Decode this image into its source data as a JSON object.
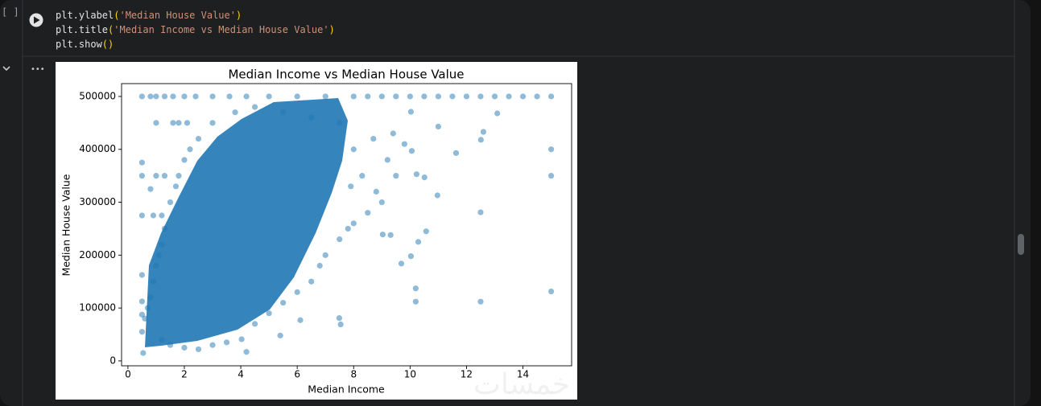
{
  "cell": {
    "execution_count": "[ ]",
    "code": [
      [
        "plt.ylabel",
        "(",
        "'Median House Value'",
        ")"
      ],
      [
        "plt.title",
        "(",
        "'Median Income vs Median House Value'",
        ")"
      ],
      [
        "plt.show",
        "()"
      ]
    ],
    "output_menu": "•••",
    "watermark": "خمسات"
  },
  "chart_data": {
    "type": "scatter",
    "title": "Median Income vs Median House Value",
    "x_label": "Median Income",
    "y_label": "Median House Value",
    "color": "#1f77b4",
    "xlim": [
      -0.225,
      15.725
    ],
    "ylim": [
      -9250,
      524250
    ],
    "xticks": [
      0,
      2,
      4,
      6,
      8,
      10,
      12,
      14
    ],
    "yticks": [
      0,
      100000,
      200000,
      300000,
      400000,
      500000
    ],
    "grid": false,
    "series": [
      {
        "name": "data",
        "x": [
          0.5,
          0.8,
          1.0,
          1.3,
          1.6,
          2.0,
          2.4,
          3.0,
          3.6,
          4.2,
          5,
          6,
          7,
          8,
          8.5,
          9,
          9.5,
          10,
          10.5,
          11,
          11.5,
          12,
          12.5,
          13,
          13.5,
          14,
          14.5,
          15,
          15,
          15,
          15,
          12.5,
          12.5,
          10.2,
          10.2,
          10.29,
          10.57,
          10.03,
          9.69,
          9.31,
          9.03,
          7.54,
          7.49,
          6.11,
          5.4,
          4.2,
          4.03,
          0.54,
          0.5,
          0.5,
          0.5,
          0.5,
          0.5,
          0.5,
          0.5,
          1.0,
          1.0,
          1.3,
          1.8,
          0.8,
          0.9,
          1.2,
          12.51,
          12.6,
          11.63,
          10.97,
          10.51,
          10.23,
          10.06,
          11,
          13.09,
          10.03,
          8.5,
          8,
          7.8,
          7.5,
          7,
          6.8,
          6.5,
          6,
          5.5,
          5,
          4.5,
          9,
          8.8,
          9.5,
          9.2,
          8.3,
          7.9,
          8.0,
          8.7,
          9.4,
          9.8,
          7.5,
          6.5,
          5.5,
          4.5,
          3.8,
          3,
          2.5,
          2.2,
          2.0,
          1.7,
          1.5,
          1.3,
          1.2,
          1.1,
          1.0,
          0.9,
          0.8,
          0.7,
          0.6,
          1.5,
          2,
          2.5,
          3,
          3.5,
          1.2,
          1.8,
          1.6,
          2.1
        ],
        "values": [
          500001,
          500001,
          500001,
          500001,
          500001,
          500001,
          500001,
          500001,
          500001,
          500001,
          500001,
          500001,
          500001,
          500001,
          500001,
          500001,
          500001,
          500001,
          500001,
          500001,
          500001,
          500001,
          500001,
          500001,
          500001,
          500001,
          500001,
          500001,
          400000,
          350000,
          131300,
          281000,
          112000,
          137000,
          112000,
          225000,
          245000,
          198000,
          184000,
          238000,
          239000,
          69000,
          81000,
          77000,
          48000,
          17000,
          41000,
          15000,
          375000,
          350000,
          275000,
          162500,
          112500,
          87500,
          55000,
          450000,
          350000,
          350000,
          350000,
          325000,
          275000,
          275000,
          418000,
          433000,
          393000,
          313000,
          347000,
          353000,
          397000,
          443000,
          468000,
          471000,
          280000,
          260000,
          250000,
          230000,
          200000,
          180000,
          150000,
          130000,
          110000,
          90000,
          70000,
          300000,
          320000,
          350000,
          380000,
          350000,
          330000,
          400000,
          420000,
          430000,
          410000,
          450000,
          460000,
          470000,
          480000,
          470000,
          450000,
          420000,
          400000,
          380000,
          330000,
          300000,
          250000,
          220000,
          200000,
          180000,
          150000,
          120000,
          100000,
          80000,
          30000,
          25000,
          22000,
          30000,
          35000,
          40000,
          450000,
          450000,
          450000
        ]
      }
    ]
  }
}
